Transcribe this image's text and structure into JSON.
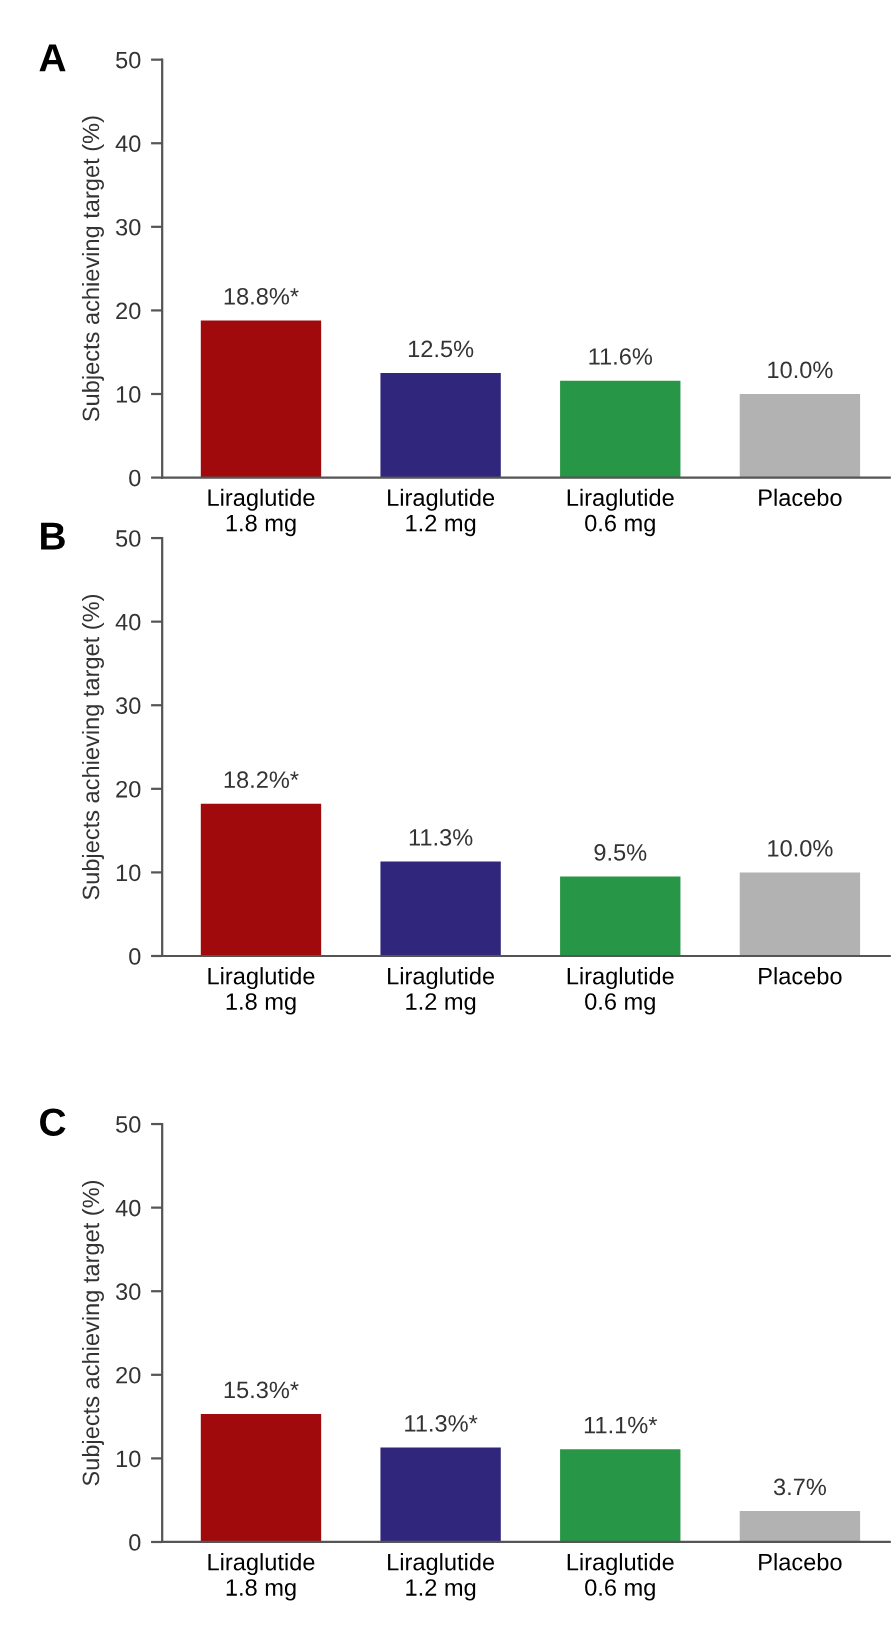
{
  "chart_data": [
    {
      "type": "bar",
      "title": "A",
      "ylabel": "Subjects achieving target (%)",
      "categories": [
        "Liraglutide\n1.8 mg",
        "Liraglutide\n1.2 mg",
        "Liraglutide\n0.6 mg",
        "Placebo"
      ],
      "values": [
        18.8,
        12.5,
        11.6,
        10.0
      ],
      "value_labels": [
        "18.8%*",
        "12.5%",
        "11.6%",
        "10.0%"
      ],
      "colors": [
        "#a00a0c",
        "#30277c",
        "#279646",
        "#b2b2b2"
      ],
      "ylim": [
        0,
        50
      ],
      "yticks": [
        0,
        10,
        20,
        30,
        40,
        50
      ],
      "grid": false
    },
    {
      "type": "bar",
      "title": "B",
      "ylabel": "Subjects achieving target (%)",
      "categories": [
        "Liraglutide\n1.8 mg",
        "Liraglutide\n1.2 mg",
        "Liraglutide\n0.6 mg",
        "Placebo"
      ],
      "values": [
        18.2,
        11.3,
        9.5,
        10.0
      ],
      "value_labels": [
        "18.2%*",
        "11.3%",
        "9.5%",
        "10.0%"
      ],
      "colors": [
        "#a00a0c",
        "#30277c",
        "#279646",
        "#b2b2b2"
      ],
      "ylim": [
        0,
        50
      ],
      "yticks": [
        0,
        10,
        20,
        30,
        40,
        50
      ],
      "grid": false
    },
    {
      "type": "bar",
      "title": "C",
      "ylabel": "Subjects achieving target (%)",
      "categories": [
        "Liraglutide\n1.8 mg",
        "Liraglutide\n1.2 mg",
        "Liraglutide\n0.6 mg",
        "Placebo"
      ],
      "values": [
        15.3,
        11.3,
        11.1,
        3.7
      ],
      "value_labels": [
        "15.3%*",
        "11.3%*",
        "11.1%*",
        "3.7%"
      ],
      "colors": [
        "#a00a0c",
        "#30277c",
        "#279646",
        "#b2b2b2"
      ],
      "ylim": [
        0,
        50
      ],
      "yticks": [
        0,
        10,
        20,
        30,
        40,
        50
      ],
      "grid": false
    }
  ]
}
